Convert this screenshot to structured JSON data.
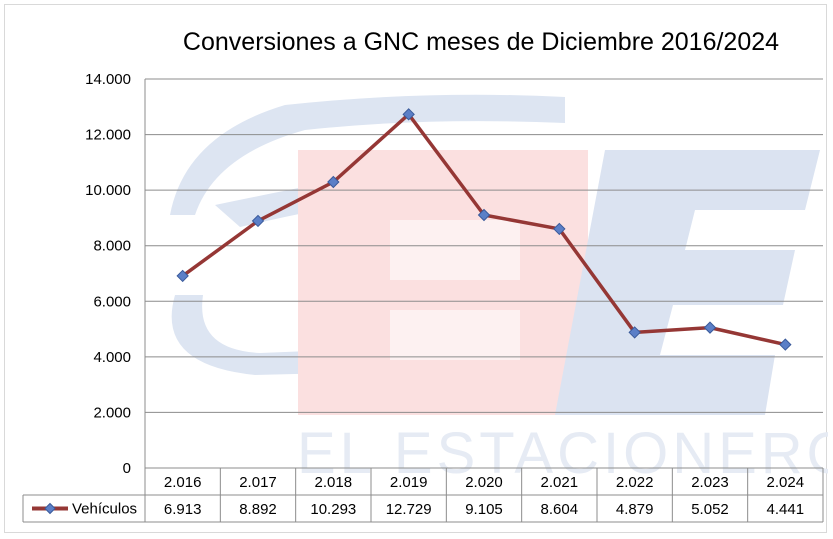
{
  "chart_data": {
    "type": "line",
    "title": "Conversiones a GNC  meses de Diciembre 2016/2024",
    "categories": [
      "2.016",
      "2.017",
      "2.018",
      "2.019",
      "2.020",
      "2.021",
      "2.022",
      "2.023",
      "2.024"
    ],
    "series": [
      {
        "name": "Vehículos",
        "values": [
          6913,
          8892,
          10293,
          12729,
          9105,
          8604,
          4879,
          5052,
          4441
        ],
        "value_labels": [
          "6.913",
          "8.892",
          "10.293",
          "12.729",
          "9.105",
          "8.604",
          "4.879",
          "5.052",
          "4.441"
        ]
      }
    ],
    "ylim": [
      0,
      14000
    ],
    "yticks": [
      0,
      2000,
      4000,
      6000,
      8000,
      10000,
      12000,
      14000
    ],
    "ytick_labels": [
      "0",
      "2.000",
      "4.000",
      "6.000",
      "8.000",
      "10.000",
      "12.000",
      "14.000"
    ],
    "grid": true,
    "legend": "data-table",
    "colors": {
      "line": "#953735",
      "marker_fill": "#5b7fc7",
      "marker_edge": "#3a5a9a",
      "gridline": "#8c8c8c",
      "watermark_blue": "#b4c6e7",
      "watermark_red": "#f2b5b5"
    }
  },
  "watermark": {
    "text": "EL ESTACIONERO",
    "logo_icon": "fuel-nozzle-ee-logo-icon"
  }
}
